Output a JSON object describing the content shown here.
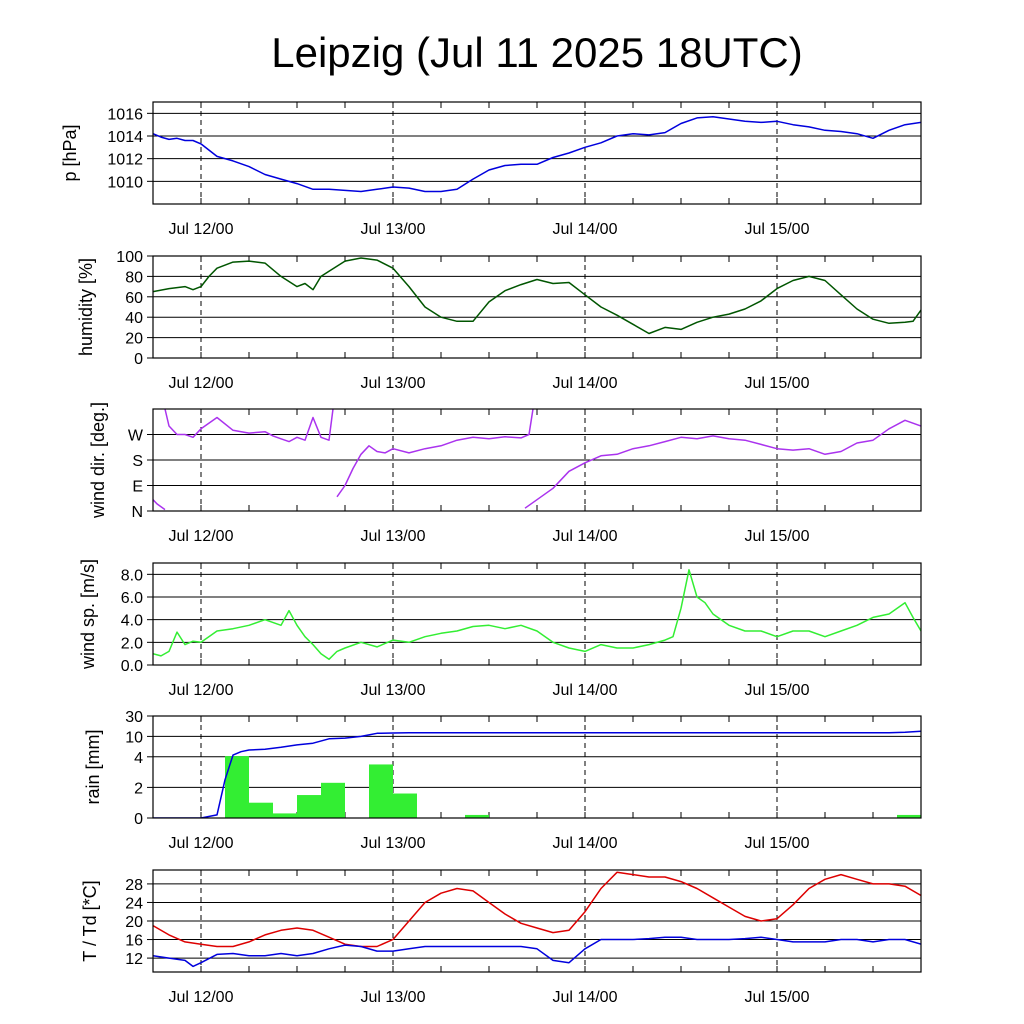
{
  "title": "Leipzig (Jul 11 2025 18UTC)",
  "x_tick_labels": [
    "Jul 12/00",
    "Jul 13/00",
    "Jul 14/00",
    "Jul 15/00"
  ],
  "chart_data": [
    {
      "type": "line",
      "id": "pressure",
      "ylabel": "p [hPa]",
      "ylim": [
        1008,
        1017
      ],
      "yticks": [
        1010,
        1012,
        1014,
        1016
      ],
      "ytick_labels": [
        "1010",
        "1012",
        "1014",
        "1016"
      ],
      "series": [
        {
          "color": "#0000dd",
          "x": [
            0,
            1,
            2,
            3,
            4,
            5,
            6,
            8,
            10,
            12,
            14,
            16,
            18,
            20,
            22,
            24,
            26,
            28,
            30,
            32,
            34,
            36,
            38,
            40,
            42,
            44,
            46,
            48,
            50,
            52,
            54,
            56,
            58,
            60,
            62,
            64,
            66,
            68,
            70,
            72,
            74,
            76,
            78,
            80,
            82,
            84,
            86,
            88,
            90,
            92,
            94,
            96
          ],
          "values": [
            1014.2,
            1013.9,
            1013.7,
            1013.8,
            1013.6,
            1013.6,
            1013.3,
            1012.2,
            1011.8,
            1011.3,
            1010.6,
            1010.2,
            1009.8,
            1009.3,
            1009.3,
            1009.2,
            1009.1,
            1009.3,
            1009.5,
            1009.4,
            1009.1,
            1009.1,
            1009.3,
            1010.2,
            1011.0,
            1011.4,
            1011.5,
            1011.5,
            1012.1,
            1012.5,
            1013.0,
            1013.4,
            1014.0,
            1014.2,
            1014.1,
            1014.3,
            1015.1,
            1015.6,
            1015.7,
            1015.5,
            1015.3,
            1015.2,
            1015.3,
            1015.0,
            1014.8,
            1014.5,
            1014.4,
            1014.2,
            1013.8,
            1014.5,
            1015.0,
            1015.2
          ]
        }
      ]
    },
    {
      "type": "line",
      "id": "humidity",
      "ylabel": "humidity [%]",
      "ylim": [
        0,
        100
      ],
      "yticks": [
        0,
        20,
        40,
        60,
        80,
        100
      ],
      "ytick_labels": [
        "0",
        "20",
        "40",
        "60",
        "80",
        "100"
      ],
      "series": [
        {
          "color": "#005500",
          "x": [
            0,
            2,
            4,
            5,
            6,
            7,
            8,
            10,
            12,
            14,
            16,
            17,
            18,
            19,
            20,
            21,
            22,
            24,
            26,
            28,
            30,
            32,
            34,
            36,
            38,
            40,
            42,
            44,
            46,
            48,
            50,
            52,
            54,
            56,
            58,
            60,
            62,
            64,
            66,
            68,
            70,
            72,
            74,
            76,
            78,
            80,
            82,
            84,
            86,
            88,
            90,
            92,
            94,
            95,
            96
          ],
          "values": [
            65,
            68,
            70,
            67,
            70,
            80,
            88,
            94,
            95,
            93,
            80,
            75,
            70,
            73,
            67,
            80,
            85,
            95,
            98,
            96,
            88,
            70,
            50,
            40,
            36,
            36,
            55,
            66,
            72,
            77,
            73,
            74,
            62,
            50,
            42,
            33,
            24,
            30,
            28,
            35,
            40,
            43,
            48,
            56,
            68,
            76,
            80,
            76,
            62,
            48,
            38,
            34,
            35,
            36,
            47
          ]
        }
      ]
    },
    {
      "type": "line",
      "id": "wind_direction",
      "ylabel": "wind dir. [deg.]",
      "ylim": [
        0,
        360
      ],
      "yticks": [
        0,
        90,
        180,
        270
      ],
      "ytick_labels": [
        "N",
        "E",
        "S",
        "W"
      ],
      "series": [
        {
          "color": "#aa33ee",
          "segments": [
            {
              "x": [
                0,
                0.5,
                1.5
              ],
              "values": [
                40,
                25,
                5
              ]
            },
            {
              "x": [
                1.5,
                2,
                3,
                4,
                5,
                6,
                8,
                10,
                12,
                14,
                15,
                16,
                17,
                18,
                19,
                20,
                21,
                22,
                22.5
              ],
              "values": [
                360,
                300,
                270,
                270,
                260,
                290,
                330,
                285,
                275,
                280,
                265,
                255,
                245,
                260,
                250,
                330,
                260,
                250,
                360
              ]
            },
            {
              "x": [
                23,
                24,
                25,
                26,
                27,
                28,
                29,
                30,
                32,
                34,
                36,
                38,
                40,
                42,
                44,
                46,
                47,
                47.5
              ],
              "values": [
                50,
                90,
                150,
                200,
                230,
                210,
                205,
                220,
                205,
                220,
                230,
                250,
                260,
                255,
                262,
                258,
                270,
                360
              ]
            },
            {
              "x": [
                46.5,
                48,
                50,
                52,
                54,
                56,
                58,
                60,
                62,
                64,
                66,
                68,
                70,
                72,
                74,
                76,
                78,
                80,
                82,
                84,
                86,
                88,
                90,
                92,
                94,
                96
              ],
              "values": [
                10,
                40,
                80,
                140,
                170,
                195,
                200,
                220,
                230,
                245,
                260,
                255,
                265,
                255,
                250,
                235,
                220,
                215,
                220,
                200,
                210,
                240,
                250,
                290,
                320,
                300
              ]
            }
          ]
        }
      ]
    },
    {
      "type": "line",
      "id": "wind_speed",
      "ylabel": "wind sp. [m/s]",
      "ylim": [
        0,
        9
      ],
      "yticks": [
        0,
        2,
        4,
        6,
        8
      ],
      "ytick_labels": [
        "0.0",
        "2.0",
        "4.0",
        "6.0",
        "8.0"
      ],
      "series": [
        {
          "color": "#33ee33",
          "x": [
            0,
            1,
            2,
            3,
            4,
            5,
            6,
            8,
            10,
            12,
            14,
            16,
            17,
            18,
            19,
            20,
            21,
            22,
            23,
            24,
            26,
            28,
            30,
            32,
            34,
            36,
            38,
            40,
            42,
            44,
            46,
            48,
            50,
            52,
            54,
            56,
            58,
            60,
            62,
            64,
            65,
            66,
            67,
            68,
            69,
            70,
            72,
            74,
            76,
            78,
            80,
            82,
            84,
            86,
            88,
            90,
            92,
            94,
            95,
            96
          ],
          "values": [
            1.0,
            0.8,
            1.2,
            2.9,
            1.8,
            2.1,
            2.0,
            3.0,
            3.2,
            3.5,
            4.0,
            3.5,
            4.8,
            3.5,
            2.5,
            1.8,
            1.0,
            0.5,
            1.2,
            1.5,
            2.0,
            1.6,
            2.2,
            2.0,
            2.5,
            2.8,
            3.0,
            3.4,
            3.5,
            3.2,
            3.5,
            3.0,
            2.0,
            1.5,
            1.2,
            1.8,
            1.5,
            1.5,
            1.8,
            2.2,
            2.5,
            5.0,
            8.4,
            6.0,
            5.5,
            4.5,
            3.5,
            3.0,
            3.0,
            2.5,
            3.0,
            3.0,
            2.5,
            3.0,
            3.5,
            4.2,
            4.5,
            5.5,
            4.2,
            3.0
          ]
        }
      ]
    },
    {
      "type": "bar",
      "id": "rain",
      "ylabel": "rain [mm]",
      "ylim": [
        0,
        30
      ],
      "yscale": "piecewise",
      "yticks": [
        0,
        2,
        4,
        10,
        30
      ],
      "ytick_labels": [
        "0",
        "2",
        "4",
        "10",
        "30"
      ],
      "bars": {
        "color": "#33ee33",
        "x": [
          9,
          12,
          15,
          18,
          21,
          27,
          30,
          39,
          93
        ],
        "width": 3,
        "values": [
          4.2,
          1.0,
          0.3,
          1.5,
          2.3,
          3.5,
          1.6,
          0.2,
          0.2
        ]
      },
      "series": [
        {
          "color": "#0000dd",
          "x": [
            0,
            6,
            8,
            9,
            10,
            11,
            12,
            14,
            16,
            18,
            20,
            22,
            24,
            26,
            27,
            28,
            30,
            32,
            36,
            40,
            48,
            60,
            72,
            84,
            92,
            94,
            96
          ],
          "values": [
            0,
            0,
            0.2,
            2.5,
            4.5,
            5.5,
            6.0,
            6.2,
            6.8,
            7.5,
            8.0,
            9.3,
            9.5,
            10.0,
            11.5,
            13.0,
            13.3,
            13.5,
            13.5,
            13.5,
            13.5,
            13.5,
            13.5,
            13.5,
            13.5,
            14.0,
            15.0
          ]
        }
      ]
    },
    {
      "type": "line",
      "id": "temperature",
      "ylabel": "T / Td [*C]",
      "ylim": [
        9,
        31
      ],
      "yticks": [
        12,
        16,
        20,
        24,
        28
      ],
      "ytick_labels": [
        "12",
        "16",
        "20",
        "24",
        "28"
      ],
      "series": [
        {
          "color": "#dd0000",
          "x": [
            0,
            2,
            4,
            6,
            8,
            10,
            12,
            14,
            16,
            18,
            20,
            22,
            24,
            26,
            28,
            30,
            32,
            34,
            36,
            38,
            40,
            42,
            44,
            46,
            48,
            50,
            52,
            54,
            56,
            58,
            60,
            62,
            64,
            66,
            68,
            70,
            72,
            74,
            76,
            78,
            80,
            82,
            84,
            86,
            88,
            90,
            92,
            94,
            96
          ],
          "values": [
            19.0,
            17.0,
            15.5,
            15.0,
            14.5,
            14.5,
            15.5,
            17.0,
            18.0,
            18.5,
            18.0,
            16.5,
            15.0,
            14.5,
            14.5,
            16.0,
            20.0,
            24.0,
            26.0,
            27.0,
            26.5,
            24.0,
            21.5,
            19.5,
            18.5,
            17.5,
            18.0,
            22.0,
            27.0,
            30.5,
            30.0,
            29.5,
            29.5,
            28.5,
            27.0,
            25.0,
            23.0,
            21.0,
            20.0,
            20.5,
            23.5,
            27.0,
            29.0,
            30.0,
            29.0,
            28.0,
            28.0,
            27.5,
            25.5
          ]
        },
        {
          "color": "#0000dd",
          "x": [
            0,
            2,
            4,
            5,
            6,
            8,
            10,
            12,
            14,
            16,
            18,
            20,
            22,
            24,
            26,
            28,
            30,
            32,
            34,
            36,
            38,
            40,
            42,
            44,
            46,
            48,
            50,
            52,
            54,
            56,
            58,
            60,
            62,
            64,
            66,
            68,
            70,
            72,
            74,
            76,
            78,
            80,
            82,
            84,
            86,
            88,
            90,
            92,
            94,
            96
          ],
          "values": [
            12.5,
            12.0,
            11.5,
            10.2,
            11.0,
            12.8,
            13.0,
            12.5,
            12.5,
            13.0,
            12.5,
            13.0,
            14.0,
            14.8,
            14.5,
            13.5,
            13.5,
            14.0,
            14.5,
            14.5,
            14.5,
            14.5,
            14.5,
            14.5,
            14.5,
            14.0,
            11.5,
            11.0,
            14.0,
            16.0,
            16.0,
            16.0,
            16.2,
            16.5,
            16.5,
            16.0,
            16.0,
            16.0,
            16.2,
            16.5,
            16.0,
            15.5,
            15.5,
            15.5,
            16.0,
            16.0,
            15.5,
            16.0,
            16.0,
            15.0
          ]
        }
      ]
    }
  ]
}
